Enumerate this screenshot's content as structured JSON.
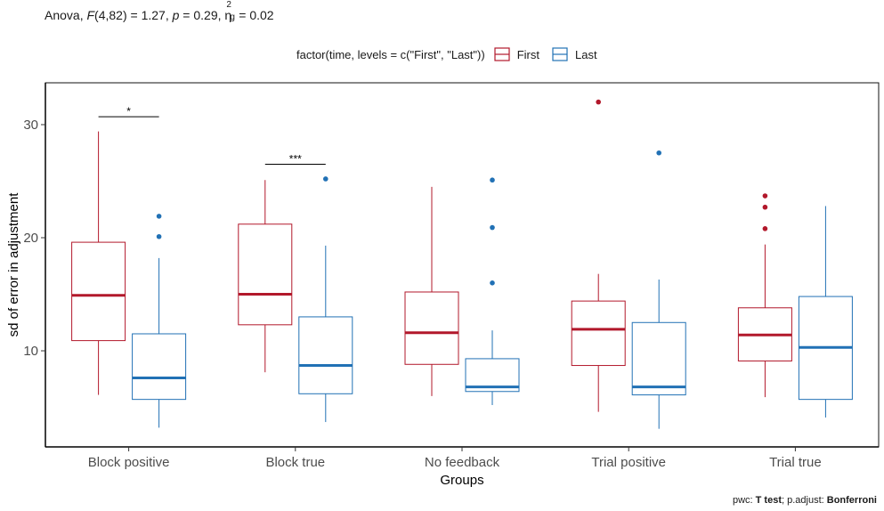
{
  "subtitle": {
    "prefix": "Anova, ",
    "f_symbol": "F",
    "df": "(4,82) = 1.27, ",
    "p_symbol": "p",
    "p_text": " = 0.29, ",
    "eta_symbol": "η",
    "eta_sup": "2",
    "eta_sub": "g",
    "eta_text": " = 0.02"
  },
  "footnote": {
    "pwc_label": "pwc: ",
    "pwc_method": "T test",
    "adjust_label": "; p.adjust: ",
    "adjust_method": "Bonferroni"
  },
  "chart_data": {
    "type": "boxplot",
    "xlabel": "Groups",
    "ylabel": "sd of error in adjustment",
    "ylim": [
      1.5,
      33.7
    ],
    "yticks": [
      10,
      20,
      30
    ],
    "legend": {
      "title": "factor(time, levels = c(\"First\", \"Last\"))",
      "placement": "top",
      "entries": [
        "First",
        "Last"
      ]
    },
    "colors": {
      "First": "#b2182b",
      "Last": "#2171b5"
    },
    "categories": [
      "Block positive",
      "Block true",
      "No feedback",
      "Trial positive",
      "Trial true"
    ],
    "series": [
      {
        "name": "First",
        "boxes": [
          {
            "lower_whisker": 6.1,
            "q1": 10.9,
            "median": 14.9,
            "q3": 19.6,
            "upper_whisker": 29.4,
            "outliers": []
          },
          {
            "lower_whisker": 8.1,
            "q1": 12.3,
            "median": 15.0,
            "q3": 21.2,
            "upper_whisker": 25.1,
            "outliers": []
          },
          {
            "lower_whisker": 6.0,
            "q1": 8.8,
            "median": 11.6,
            "q3": 15.2,
            "upper_whisker": 24.5,
            "outliers": []
          },
          {
            "lower_whisker": 4.6,
            "q1": 8.7,
            "median": 11.9,
            "q3": 14.4,
            "upper_whisker": 16.8,
            "outliers": [
              32.0
            ]
          },
          {
            "lower_whisker": 5.9,
            "q1": 9.1,
            "median": 11.4,
            "q3": 13.8,
            "upper_whisker": 19.4,
            "outliers": [
              23.7,
              22.7,
              20.8
            ]
          }
        ]
      },
      {
        "name": "Last",
        "boxes": [
          {
            "lower_whisker": 3.2,
            "q1": 5.7,
            "median": 7.6,
            "q3": 11.5,
            "upper_whisker": 18.2,
            "outliers": [
              21.9,
              20.1
            ]
          },
          {
            "lower_whisker": 3.7,
            "q1": 6.2,
            "median": 8.7,
            "q3": 13.0,
            "upper_whisker": 19.3,
            "outliers": [
              25.2
            ]
          },
          {
            "lower_whisker": 5.2,
            "q1": 6.4,
            "median": 6.8,
            "q3": 9.3,
            "upper_whisker": 11.8,
            "outliers": [
              25.1,
              20.9,
              16.0
            ]
          },
          {
            "lower_whisker": 3.1,
            "q1": 6.1,
            "median": 6.8,
            "q3": 12.5,
            "upper_whisker": 16.3,
            "outliers": [
              27.5
            ]
          },
          {
            "lower_whisker": 4.1,
            "q1": 5.7,
            "median": 10.3,
            "q3": 14.8,
            "upper_whisker": 22.8,
            "outliers": []
          }
        ]
      }
    ],
    "annotations": [
      {
        "category": "Block positive",
        "label": "*",
        "y": 30.7
      },
      {
        "category": "Block true",
        "label": "***",
        "y": 26.5
      }
    ]
  }
}
